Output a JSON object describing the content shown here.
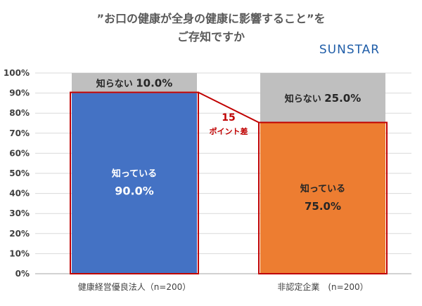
{
  "title_line1": "”お口の健康が全身の健康に影響すること”を",
  "title_line2": "ご存知ですか",
  "brand": "SUNSTAR",
  "chart_data": {
    "type": "bar",
    "stacked": true,
    "categories": [
      "健康経営優良法人（n=200）",
      "非認定企業　(n=200）"
    ],
    "series": [
      {
        "name": "知っている",
        "values": [
          90.0,
          75.0
        ],
        "colors": [
          "#4472c4",
          "#ed7d31"
        ]
      },
      {
        "name": "知らない",
        "values": [
          10.0,
          25.0
        ],
        "colors": [
          "#bfbfbf",
          "#bfbfbf"
        ]
      }
    ],
    "value_labels": {
      "know": [
        "90.0%",
        "75.0%"
      ],
      "dont_know_prefix": "知らない",
      "dont_know": [
        "10.0%",
        "25.0%"
      ]
    },
    "y_ticks": [
      "0%",
      "10%",
      "20%",
      "30%",
      "40%",
      "50%",
      "60%",
      "70%",
      "80%",
      "90%",
      "100%"
    ],
    "ylim": [
      0,
      100
    ],
    "grid": true,
    "annotation": {
      "value": "15",
      "label": "ポイント差",
      "color": "#c00000"
    }
  }
}
